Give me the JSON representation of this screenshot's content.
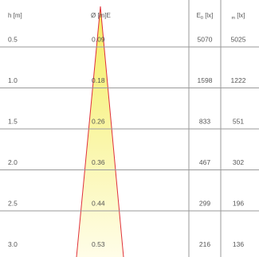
{
  "chart_data": {
    "type": "table",
    "columns": {
      "height": "h [m]",
      "diameter": "Ø [m]E",
      "e0_main": "E",
      "e0_sub": "0",
      "e0_unit": " [lx]",
      "em_sub": "m",
      "em_unit": " [lx]"
    },
    "rows": [
      {
        "h": "0.5",
        "d": "0.09",
        "e0": "5070",
        "em": "5025"
      },
      {
        "h": "1.0",
        "d": "0.18",
        "e0": "1598",
        "em": "1222"
      },
      {
        "h": "1.5",
        "d": "0.26",
        "e0": "833",
        "em": "551"
      },
      {
        "h": "2.0",
        "d": "0.36",
        "e0": "467",
        "em": "302"
      },
      {
        "h": "2.5",
        "d": "0.44",
        "e0": "299",
        "em": "196"
      },
      {
        "h": "3.0",
        "d": "0.53",
        "e0": "216",
        "em": "136"
      }
    ],
    "colors": {
      "cone_edge": "#e0303a",
      "cone_top": "#f4ee60",
      "cone_bottom": "#fffde8",
      "grid": "#9a9a9a",
      "text": "#555555"
    }
  }
}
